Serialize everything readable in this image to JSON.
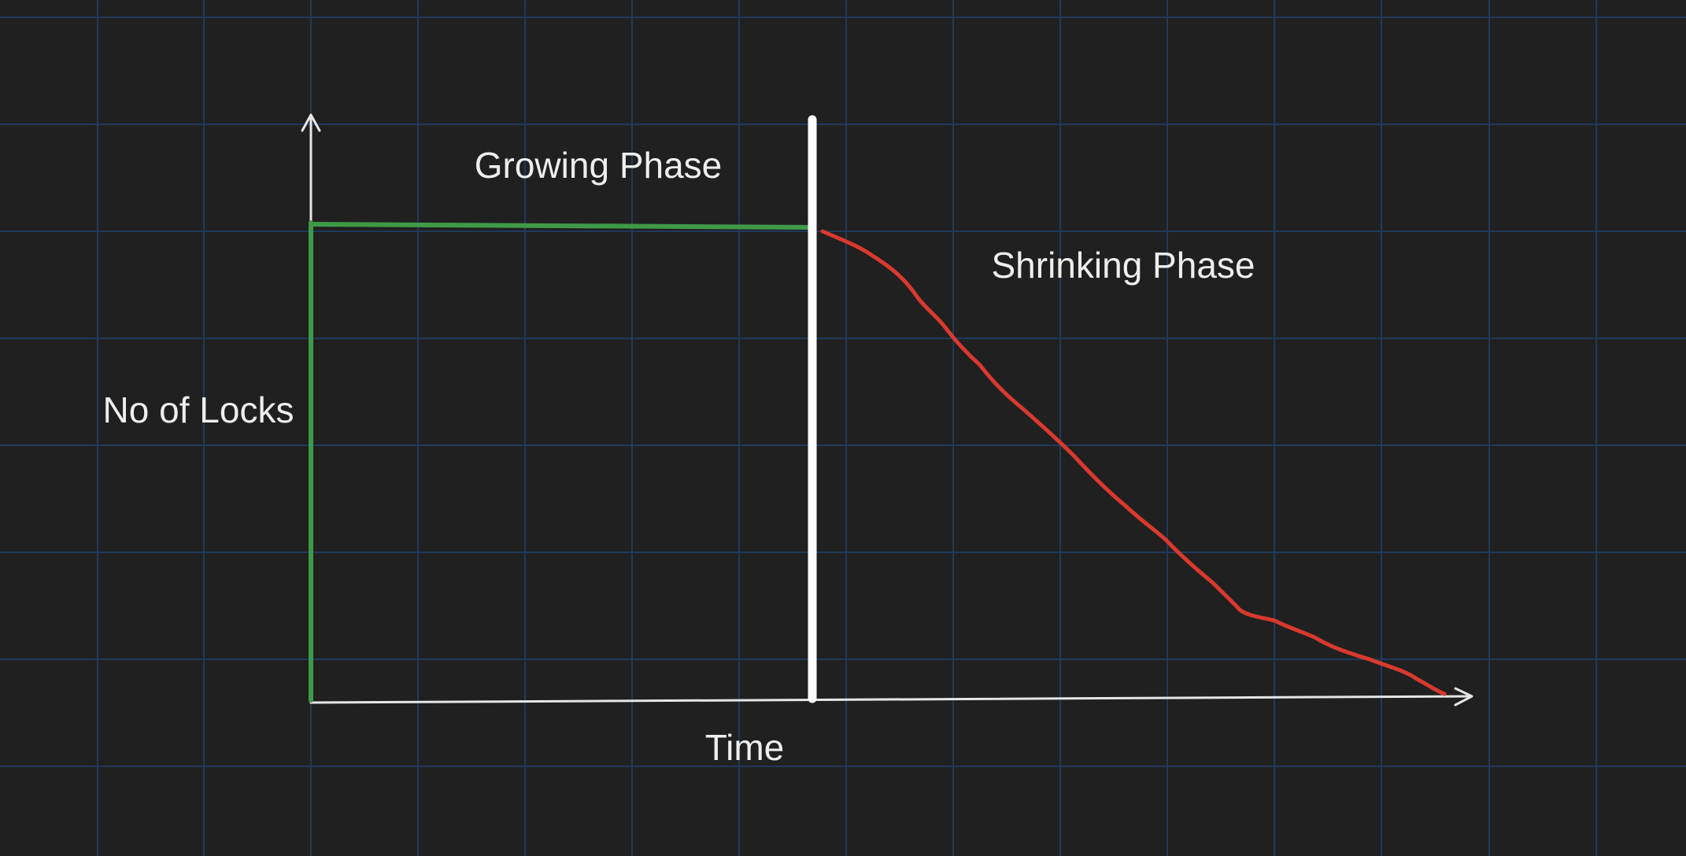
{
  "diagram": {
    "labels": {
      "growing_phase": "Growing Phase",
      "shrinking_phase": "Shrinking Phase",
      "y_axis": "No of Locks",
      "x_axis": "Time"
    },
    "colors": {
      "background": "#202020",
      "grid": "#1f3a5c",
      "axis": "#e6e6e6",
      "growing_line": "#3f9a47",
      "shrinking_curve": "#d9392e",
      "phase_divider": "#ffffff"
    }
  }
}
